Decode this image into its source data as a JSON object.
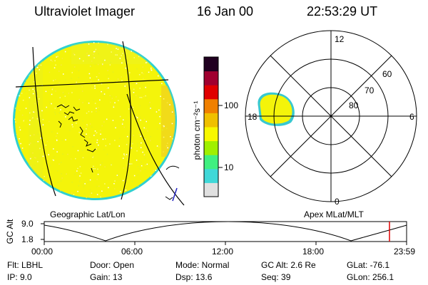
{
  "header": {
    "instrument": "Ultraviolet Imager",
    "date": "16 Jan 00",
    "time": "22:53:29 UT"
  },
  "colorbar": {
    "unit_label": "photon cm⁻²s⁻¹",
    "tick_labels": [
      "100",
      "10"
    ],
    "colors": [
      "#e0e0e0",
      "#40d8d8",
      "#40f080",
      "#a0f000",
      "#f8f800",
      "#f0c000",
      "#f08000",
      "#e00000",
      "#a00030",
      "#200020"
    ]
  },
  "geo_panel": {
    "label": "Geographic Lat/Lon",
    "fill_color": "#f4f40a",
    "edge_color": "#30d0d0"
  },
  "polar_panel": {
    "label": "Apex MLat/MLT",
    "mlt_labels": [
      "12",
      "18",
      "6",
      "0"
    ],
    "mlat_labels": [
      "60",
      "70",
      "80"
    ]
  },
  "timeline": {
    "axis_label": "GC Alt",
    "y_ticks": [
      "9.0",
      "1.8"
    ],
    "x_ticks": [
      "00:00",
      "06:00",
      "12:00",
      "18:00",
      "23:59"
    ],
    "marker_color": "#e00000"
  },
  "footer": {
    "row1": [
      "Flt: LBHL",
      "Door: Open",
      "Mode: Normal",
      "GC Alt: 2.6 Re",
      "GLat: -76.1"
    ],
    "row2": [
      "IP: 9.0",
      "Gain: 13",
      "Dsp: 13.6",
      "Seq: 39",
      "GLon: 256.1"
    ]
  }
}
